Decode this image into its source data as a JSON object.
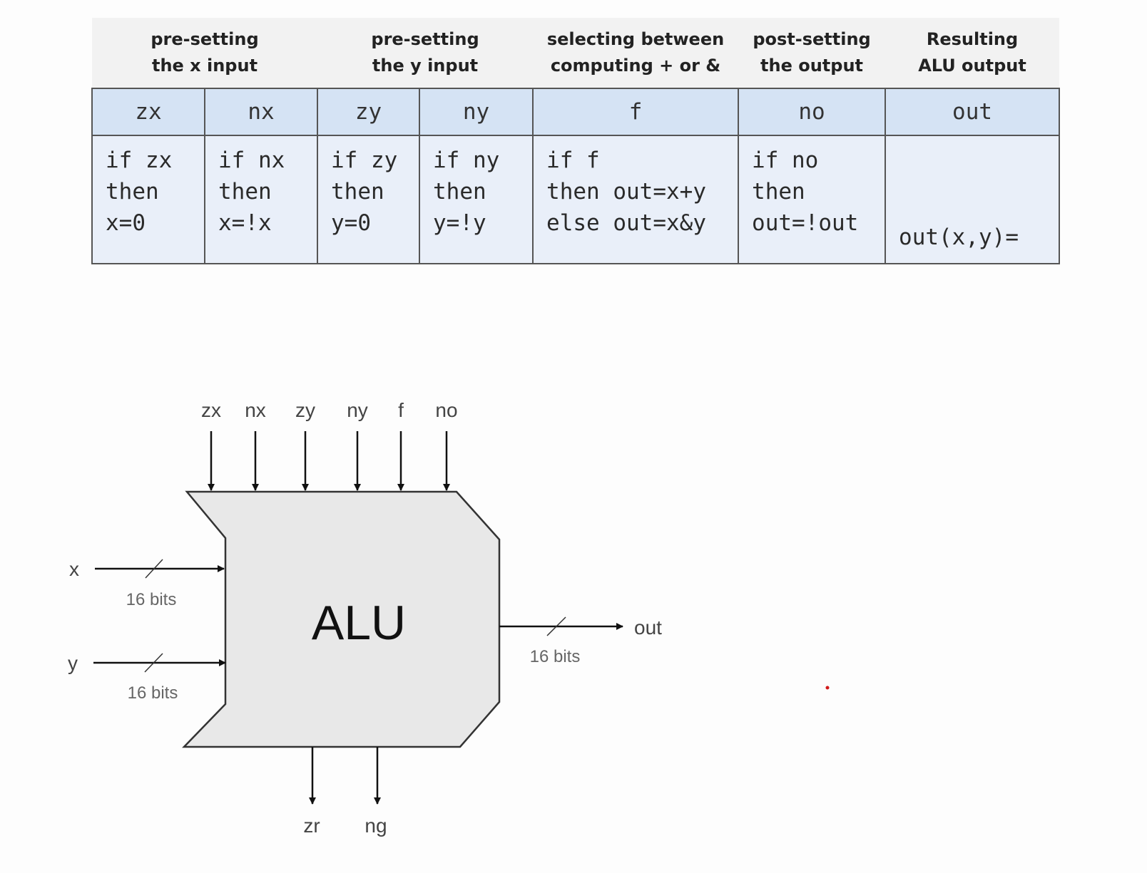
{
  "table": {
    "groups": [
      {
        "line1": "pre-setting",
        "line2": "the x input"
      },
      {
        "line1": "pre-setting",
        "line2": "the y input"
      },
      {
        "line1": "selecting between",
        "line2": "computing + or &"
      },
      {
        "line1": "post-setting",
        "line2": "the output"
      },
      {
        "line1": "Resulting",
        "line2": "ALU output"
      }
    ],
    "bits": [
      "zx",
      "nx",
      "zy",
      "ny",
      "f",
      "no",
      "out"
    ],
    "descriptions": [
      [
        "if zx",
        "then",
        "x=0"
      ],
      [
        "if nx",
        "then",
        "x=!x"
      ],
      [
        "if zy",
        "then",
        "y=0"
      ],
      [
        "if ny",
        "then",
        "y=!y"
      ],
      [
        "if f",
        "then out=x+y",
        "else out=x&y"
      ],
      [
        "if no",
        "then",
        "out=!out"
      ],
      [
        "out(x,y)="
      ]
    ]
  },
  "diagram": {
    "chip_label": "ALU",
    "control_inputs": [
      "zx",
      "nx",
      "zy",
      "ny",
      "f",
      "no"
    ],
    "data_inputs": [
      {
        "name": "x",
        "width": "16 bits"
      },
      {
        "name": "y",
        "width": "16 bits"
      }
    ],
    "output": {
      "name": "out",
      "width": "16 bits"
    },
    "flag_outputs": [
      "zr",
      "ng"
    ],
    "colors": {
      "chip_fill": "#e8e8e8",
      "chip_stroke": "#333333",
      "arrow": "#111111",
      "bits_text": "#666666",
      "marker_dot": "#d11a1a"
    }
  }
}
